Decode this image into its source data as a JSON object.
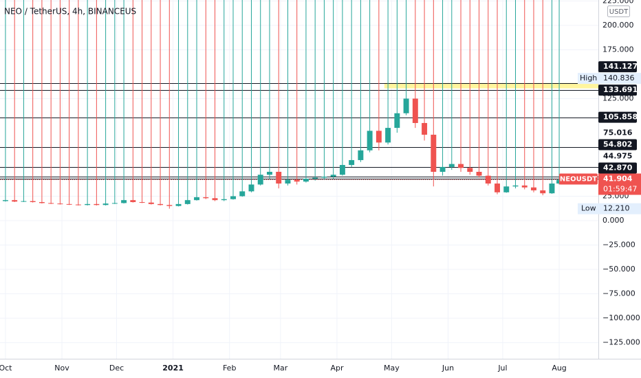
{
  "chart_data": {
    "type": "candlestick",
    "title": "NEO / TetherUS, 4h, BINANCEUS",
    "currency": "USDT",
    "symbol": "NEOUSDT",
    "countdown": "01:59:47",
    "up_color": "#26a69a",
    "down_color": "#ef5350",
    "grid": true,
    "xlim": [
      -3,
      325.5
    ],
    "ylim": [
      -141.5,
      226
    ],
    "xticks": [
      {
        "value": 0,
        "label": "Oct"
      },
      {
        "value": 31,
        "label": "Nov"
      },
      {
        "value": 61,
        "label": "Dec"
      },
      {
        "value": 92,
        "label": "2021"
      },
      {
        "value": 123,
        "label": "Feb"
      },
      {
        "value": 151,
        "label": "Mar"
      },
      {
        "value": 182,
        "label": "Apr"
      },
      {
        "value": 212,
        "label": "May"
      },
      {
        "value": 243,
        "label": "Jun"
      },
      {
        "value": 273,
        "label": "Jul"
      },
      {
        "value": 304,
        "label": "Aug"
      }
    ],
    "yticks": [
      {
        "value": 225,
        "label": "225.000"
      },
      {
        "value": 200,
        "label": "200.000"
      },
      {
        "value": 175,
        "label": "175.000"
      },
      {
        "value": 125,
        "label": "125.000"
      },
      {
        "value": 25,
        "label": "25.000"
      },
      {
        "value": 0,
        "label": "0.000"
      },
      {
        "value": -25,
        "label": "−25.000"
      },
      {
        "value": -50,
        "label": "−50.000"
      },
      {
        "value": -75,
        "label": "−75.000"
      },
      {
        "value": -100,
        "label": "−100.000"
      },
      {
        "value": -125,
        "label": "−125.000"
      }
    ],
    "x": [
      0,
      5,
      10,
      15,
      20,
      25,
      30,
      35,
      40,
      45,
      50,
      55,
      60,
      65,
      70,
      75,
      80,
      85,
      90,
      95,
      100,
      105,
      110,
      115,
      120,
      125,
      130,
      135,
      140,
      145,
      150,
      155,
      160,
      165,
      170,
      175,
      180,
      185,
      190,
      195,
      200,
      205,
      210,
      215,
      220,
      225,
      230,
      235,
      240,
      245,
      250,
      255,
      260,
      265,
      270,
      275,
      280,
      285,
      290,
      295,
      300,
      304
    ],
    "open": [
      20,
      21,
      19.5,
      20,
      19,
      18,
      17.5,
      17,
      16.5,
      16,
      17,
      16,
      17.5,
      18,
      21,
      19,
      18.5,
      17,
      16,
      15,
      17,
      21,
      24,
      23,
      21,
      22,
      25,
      30,
      37,
      47,
      50,
      38,
      42,
      40,
      43,
      44,
      45,
      47,
      57,
      62,
      72,
      92,
      80,
      95,
      110,
      125,
      100,
      88,
      50,
      55,
      58,
      54,
      50,
      46,
      38,
      29,
      35,
      36,
      34,
      31,
      28,
      38
    ],
    "high": {
      "name": "High",
      "value": 140.836,
      "label": "140.836"
    },
    "low": [
      19.5,
      19,
      19,
      18.5,
      17.5,
      17,
      16.5,
      16,
      15.5,
      15.5,
      15.5,
      15.5,
      17,
      17.5,
      18.5,
      18,
      16.5,
      15.5,
      12.21,
      14.5,
      16.5,
      20.5,
      22,
      20,
      20,
      21.5,
      24.5,
      29,
      36,
      43,
      33,
      36,
      37,
      39,
      41,
      42,
      43,
      46,
      55,
      60,
      70,
      72,
      78,
      90,
      108,
      95,
      82,
      35,
      46,
      52,
      50,
      47,
      44,
      36,
      27,
      28.5,
      33,
      32,
      29,
      26,
      27.5,
      37
    ],
    "close": [
      21,
      19.5,
      20,
      19,
      18,
      17.5,
      17,
      16.5,
      16,
      17,
      16,
      17.5,
      18,
      21,
      19,
      18.5,
      17,
      16,
      15,
      17,
      21,
      24,
      23,
      21,
      22,
      25,
      30,
      37,
      47,
      50,
      38,
      42,
      40,
      43,
      44,
      45,
      47,
      57,
      62,
      72,
      92,
      80,
      95,
      110,
      125,
      100,
      88,
      50,
      55,
      58,
      54,
      50,
      46,
      38,
      29,
      35,
      36,
      34,
      31,
      28,
      38,
      41.904
    ],
    "zone": {
      "start": 208,
      "from": 135.5,
      "to": 141,
      "color": "#fff59d"
    },
    "lines": [
      {
        "value": 141.127,
        "label": "141.127",
        "boxed": true
      },
      {
        "value": 133.691,
        "label": "133.691",
        "boxed": true
      },
      {
        "value": 105.858,
        "label": "105.858",
        "boxed": true
      },
      {
        "value": 75.016,
        "label": "75.016",
        "boxed": false
      },
      {
        "value": 54.802,
        "label": "54.802",
        "boxed": true
      },
      {
        "value": 44.975,
        "label": "44.975",
        "boxed": false
      },
      {
        "value": 42.87,
        "label": "42.870",
        "boxed": true
      }
    ],
    "low_marker": {
      "name": "Low",
      "value": 12.21,
      "label": "12.210"
    },
    "last": {
      "value": 41.904,
      "label": "41.904",
      "color": "#ef5350"
    }
  }
}
